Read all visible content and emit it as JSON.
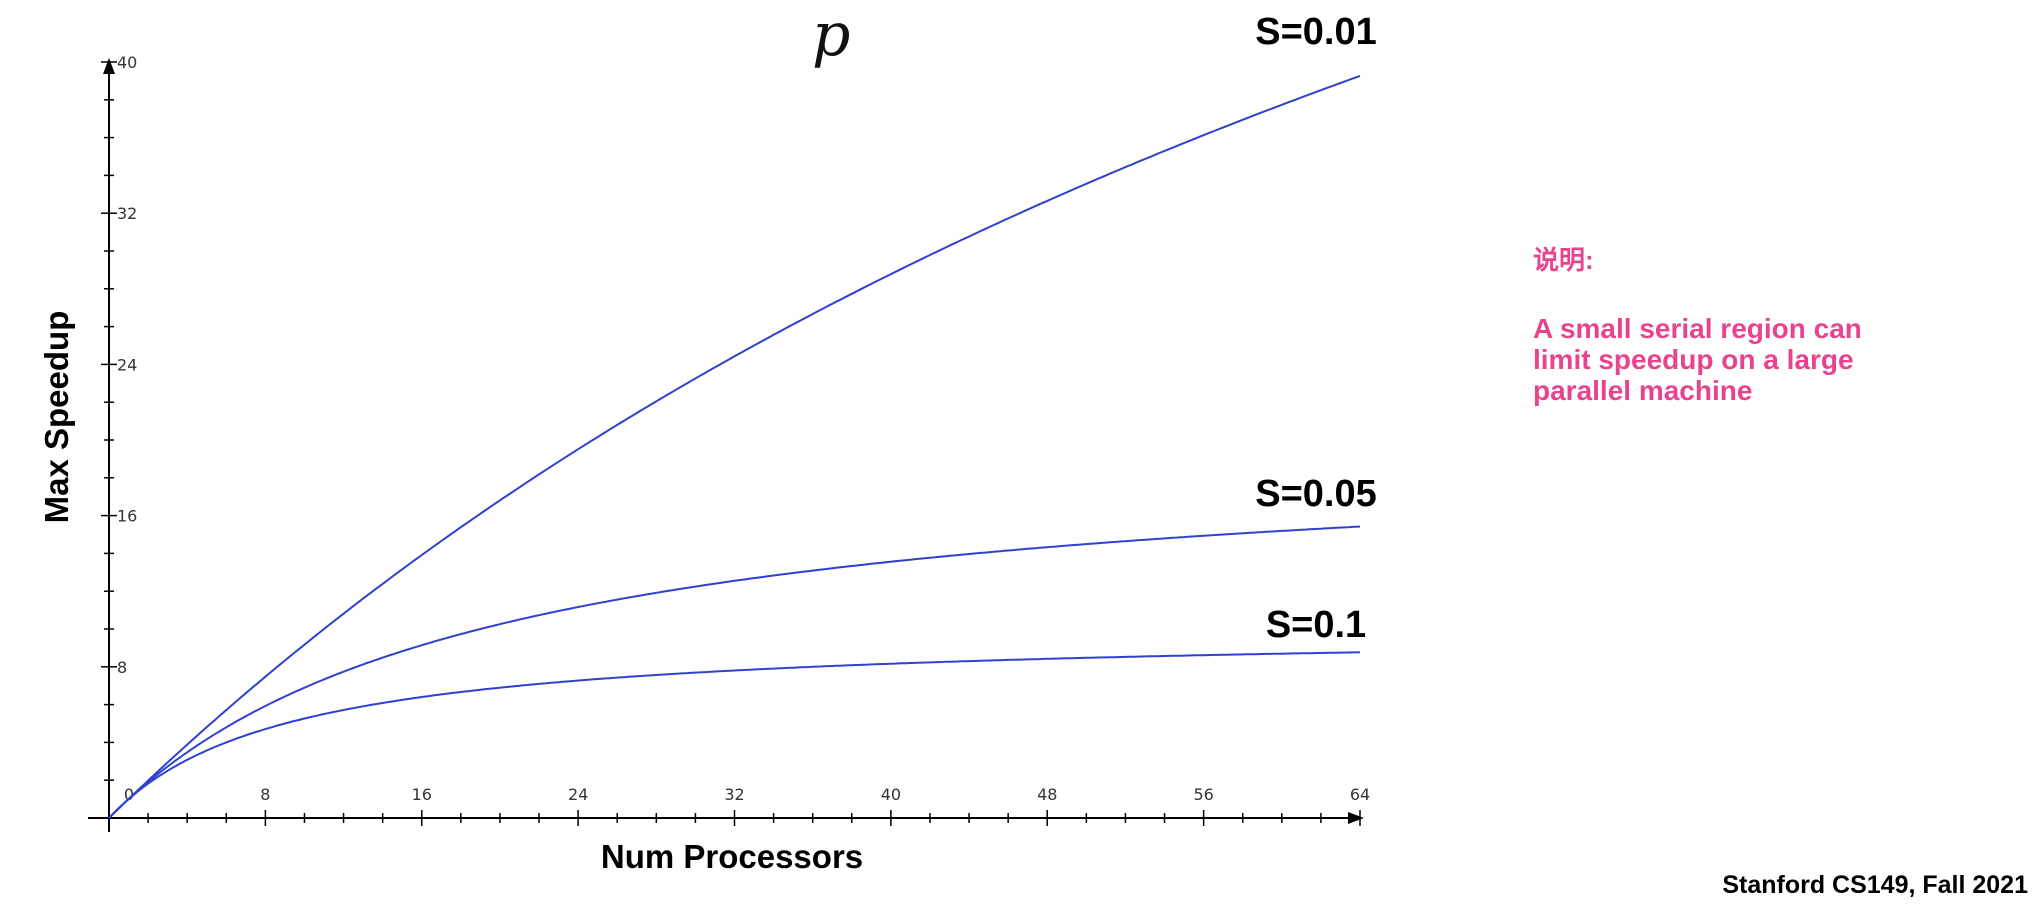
{
  "chart_data": {
    "type": "line",
    "title": "",
    "top_fragment": "p",
    "xlabel": "Num Processors",
    "ylabel": "Max Speedup",
    "xlim": [
      0,
      64
    ],
    "ylim": [
      0,
      40
    ],
    "x_ticks": [
      0,
      8,
      16,
      24,
      32,
      40,
      48,
      56,
      64
    ],
    "y_ticks": [
      8,
      16,
      24,
      32,
      40
    ],
    "x_minor_step": 2,
    "y_minor_step": 2,
    "grid": false,
    "line_color": "#3040d0",
    "series": [
      {
        "name": "S=0.01",
        "s": 0.01
      },
      {
        "name": "S=0.05",
        "s": 0.05
      },
      {
        "name": "S=0.1",
        "s": 0.1
      }
    ]
  },
  "note": {
    "heading": "说明:",
    "body": "A small serial region can limit speedup on a large parallel machine",
    "color": "#e8438f"
  },
  "footer": "Stanford CS149, Fall 2021"
}
